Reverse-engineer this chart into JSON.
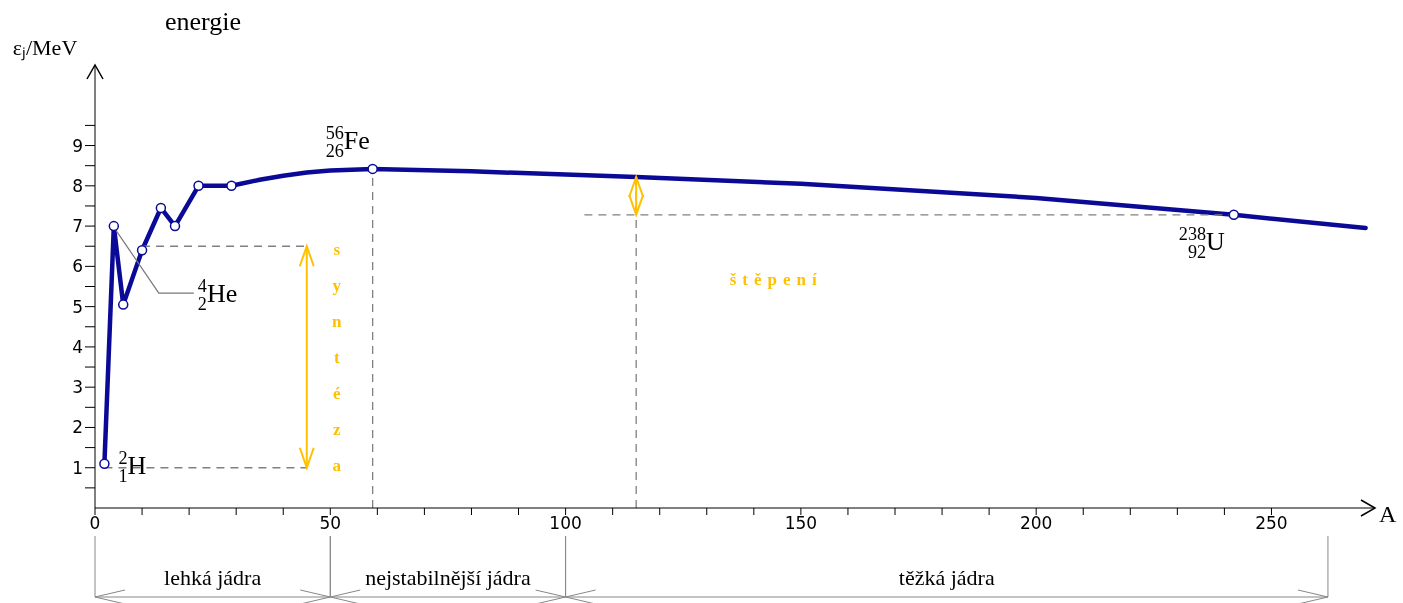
{
  "chart_data": {
    "type": "line",
    "ylabel": "εⱼ/MeV",
    "xlabel": "A",
    "xlim": [
      0,
      272
    ],
    "ylim": [
      0,
      11
    ],
    "xticks": [
      0,
      {
        "value": 10,
        "label": null
      },
      {
        "value": 20,
        "label": null
      },
      {
        "value": 30,
        "label": null
      },
      {
        "value": 40,
        "label": null
      },
      50,
      {
        "value": 60,
        "label": null
      },
      {
        "value": 70,
        "label": null
      },
      {
        "value": 80,
        "label": null
      },
      {
        "value": 90,
        "label": null
      },
      100,
      {
        "value": 110,
        "label": null
      },
      {
        "value": 120,
        "label": null
      },
      {
        "value": 130,
        "label": null
      },
      {
        "value": 140,
        "label": null
      },
      150,
      {
        "value": 160,
        "label": null
      },
      {
        "value": 170,
        "label": null
      },
      {
        "value": 180,
        "label": null
      },
      {
        "value": 190,
        "label": null
      },
      200,
      {
        "value": 210,
        "label": null
      },
      {
        "value": 220,
        "label": null
      },
      {
        "value": 230,
        "label": null
      },
      {
        "value": 240,
        "label": null
      },
      250
    ],
    "yticks": [
      {
        "value": 0.5,
        "label": null
      },
      1,
      {
        "value": 1.5,
        "label": null
      },
      2,
      {
        "value": 2.5,
        "label": null
      },
      3,
      {
        "value": 3.5,
        "label": null
      },
      4,
      {
        "value": 4.5,
        "label": null
      },
      5,
      {
        "value": 5.5,
        "label": null
      },
      6,
      {
        "value": 6.5,
        "label": null
      },
      7,
      {
        "value": 7.5,
        "label": null
      },
      8,
      {
        "value": 8.5,
        "label": null
      },
      9,
      {
        "value": 9.5,
        "label": null
      }
    ],
    "series": [
      {
        "color": "#0a0a96",
        "marker": "none",
        "x": [
          2,
          4,
          6,
          10,
          14,
          17,
          22,
          29,
          35,
          40,
          45,
          50,
          59,
          80,
          100,
          115,
          150,
          200,
          242,
          270
        ],
        "values": [
          1.1,
          7.0,
          5.05,
          6.4,
          7.45,
          7.0,
          8.0,
          8.0,
          8.15,
          8.25,
          8.33,
          8.38,
          8.42,
          8.36,
          8.28,
          8.22,
          8.05,
          7.7,
          7.28,
          6.95
        ]
      },
      {
        "type": "scatter",
        "color": "#ffffff",
        "marker": "circle",
        "x": [
          2,
          4,
          6,
          10,
          14,
          17,
          22,
          29,
          59,
          242
        ],
        "values": [
          1.1,
          7.0,
          5.05,
          6.4,
          7.45,
          7.0,
          8.0,
          8.0,
          8.42,
          7.28
        ]
      }
    ],
    "ref_lines": [
      {
        "axis": "y",
        "value": 1,
        "color": "#808080",
        "line_style": "dashed"
      },
      {
        "axis": "y",
        "value": 6.5,
        "color": "#808080",
        "line_style": "dashed"
      },
      {
        "axis": "y",
        "value": 7.28,
        "color": "#808080",
        "line_style": "dashed"
      },
      {
        "axis": "x",
        "value": 59,
        "color": "#808080",
        "line_style": "dashed"
      },
      {
        "axis": "x",
        "value": 115,
        "color": "#808080",
        "line_style": "dashed"
      }
    ],
    "annotations": [
      "energie",
      {
        "text": "$^{2}$$_{1}$H",
        "x": 2,
        "y": 1.1
      },
      {
        "text": "$^{4}$$_{2}$He",
        "x": 4,
        "y": 7.0
      },
      {
        "text": "$^{56}$$_{26}$Fe",
        "x": 59,
        "y": 8.42
      },
      {
        "text": "$^{238}$$_{92}$U",
        "x": 242,
        "y": 7.28
      },
      "syntéza",
      "štěpení",
      "lehká jádra",
      "nejstabilnější jádra",
      "těžká jádra"
    ]
  }
}
